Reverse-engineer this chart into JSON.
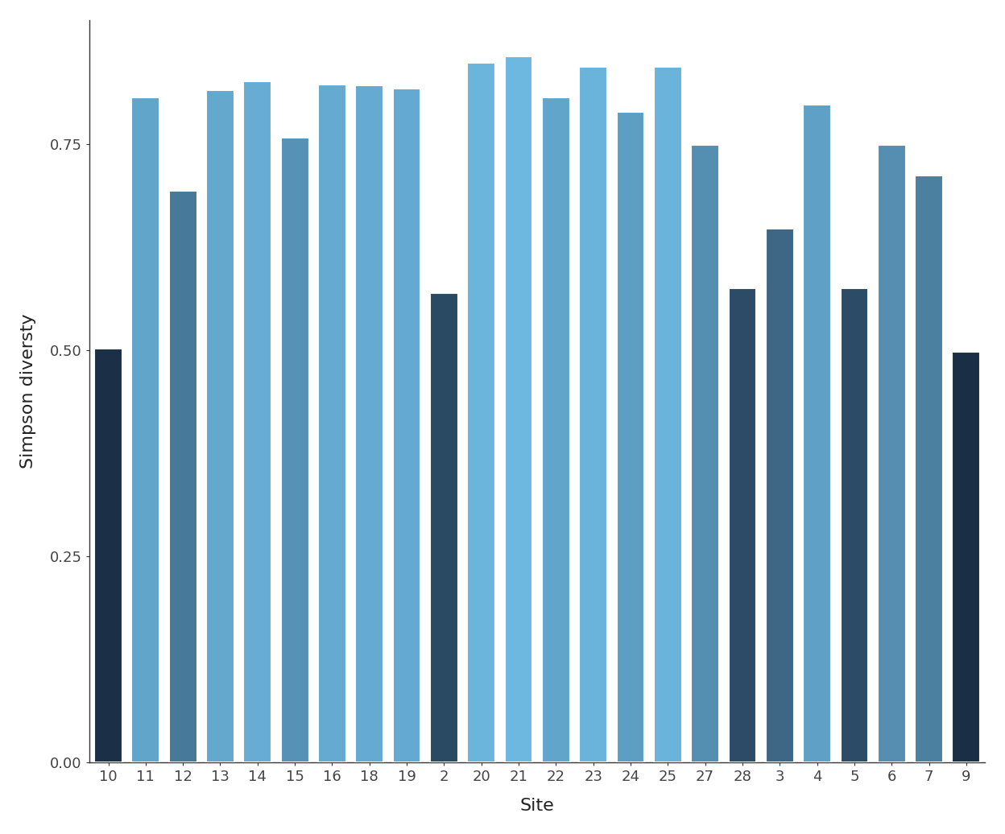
{
  "sites": [
    "10",
    "11",
    "12",
    "13",
    "14",
    "15",
    "16",
    "18",
    "19",
    "2",
    "20",
    "21",
    "22",
    "23",
    "24",
    "25",
    "27",
    "28",
    "3",
    "4",
    "5",
    "6",
    "7",
    "9"
  ],
  "diversities": [
    0.5012,
    0.8061,
    0.6927,
    0.8155,
    0.8256,
    0.7576,
    0.8216,
    0.821,
    0.8172,
    0.5688,
    0.8485,
    0.8565,
    0.8058,
    0.8438,
    0.7882,
    0.8438,
    0.749,
    0.5744,
    0.6469,
    0.7972,
    0.5744,
    0.749,
    0.7115,
    0.4975
  ],
  "xlabel": "Site",
  "ylabel": "Simpson diversty",
  "ylim_min": 0.0,
  "ylim_max": 0.9,
  "yticks": [
    0.0,
    0.25,
    0.5,
    0.75
  ],
  "colormap_low": "#1a2e45",
  "colormap_high": "#6db8e0",
  "panel_background": "#ffffff",
  "plot_background": "#ffffff",
  "bar_edge_color": "white",
  "bar_edge_width": 1.5,
  "axis_text_size": 13,
  "axis_title_size": 16,
  "axis_line_color": "#333333",
  "tick_color": "#444444"
}
